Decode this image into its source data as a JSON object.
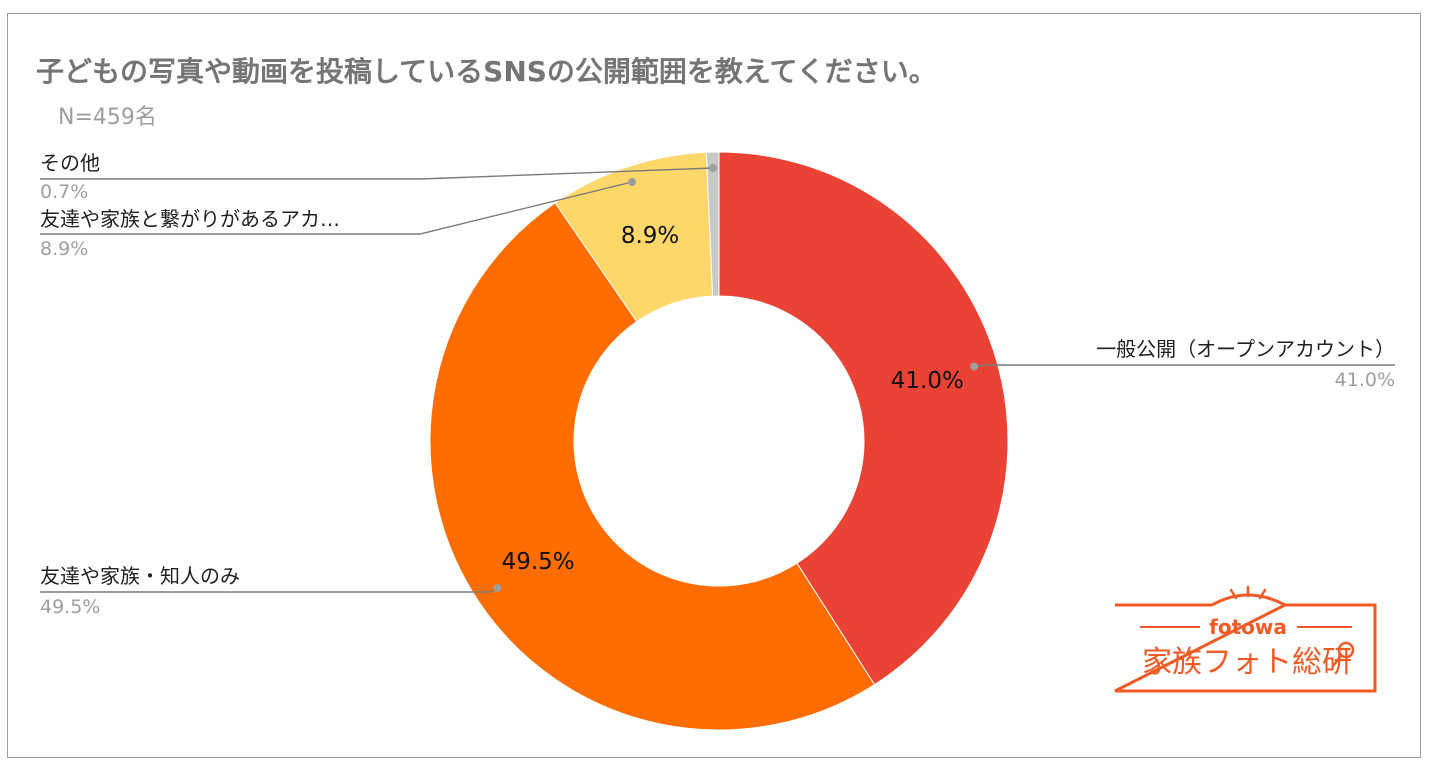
{
  "title": "子どもの写真や動画を投稿しているSNSの公開範囲を教えてください。",
  "subtitle": "N=459名",
  "chart_data": {
    "type": "pie",
    "donut": true,
    "title": "子どもの写真や動画を投稿しているSNSの公開範囲を教えてください。",
    "subtitle": "N=459名",
    "slices": [
      {
        "label": "一般公開（オープンアカウント）",
        "value": 41.0,
        "display": "41.0%",
        "color": "#ea4335"
      },
      {
        "label": "友達や家族・知人のみ",
        "value": 49.5,
        "display": "49.5%",
        "color": "#ff6d01"
      },
      {
        "label": "友達や家族と繋がりがあるアカ…",
        "value": 8.9,
        "display": "8.9%",
        "color": "#fdd76a"
      },
      {
        "label": "その他",
        "value": 0.7,
        "display": "0.7%",
        "color": "#c8c8c8"
      }
    ],
    "legend": "callout-labels"
  },
  "logo": {
    "brand": "fotowa",
    "name": "家族フォト総研",
    "color": "#f15a24"
  }
}
